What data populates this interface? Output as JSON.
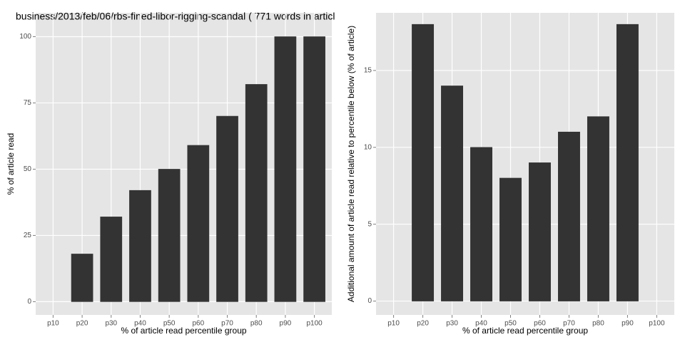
{
  "chart_data": [
    {
      "type": "bar",
      "title": "business/2013/feb/06/rbs-fined-libor-rigging-scandal ( 771 words in articl",
      "x_label": "% of article read percentile group",
      "y_label": "% of article read",
      "categories": [
        "p10",
        "p20",
        "p30",
        "p40",
        "p50",
        "p60",
        "p70",
        "p80",
        "p90",
        "p100"
      ],
      "values": [
        0,
        18,
        32,
        42,
        50,
        59,
        70,
        82,
        100,
        100
      ],
      "color": "#333333",
      "ylim": [
        -5,
        109
      ],
      "yticks": [
        0,
        25,
        50,
        75,
        100
      ],
      "grid": true
    },
    {
      "type": "bar",
      "x_label": "% of article read percentile group",
      "y_label": "Additional amount of article read relative to percentile below (% of article)",
      "categories": [
        "p10",
        "p20",
        "p30",
        "p40",
        "p50",
        "p60",
        "p70",
        "p80",
        "p90",
        "p100"
      ],
      "values": [
        0,
        18,
        14,
        10,
        8,
        9,
        11,
        12,
        18,
        0
      ],
      "color": "#333333",
      "ylim": [
        -0.9,
        18.75
      ],
      "yticks": [
        0,
        5,
        10,
        15
      ],
      "grid": true
    }
  ]
}
